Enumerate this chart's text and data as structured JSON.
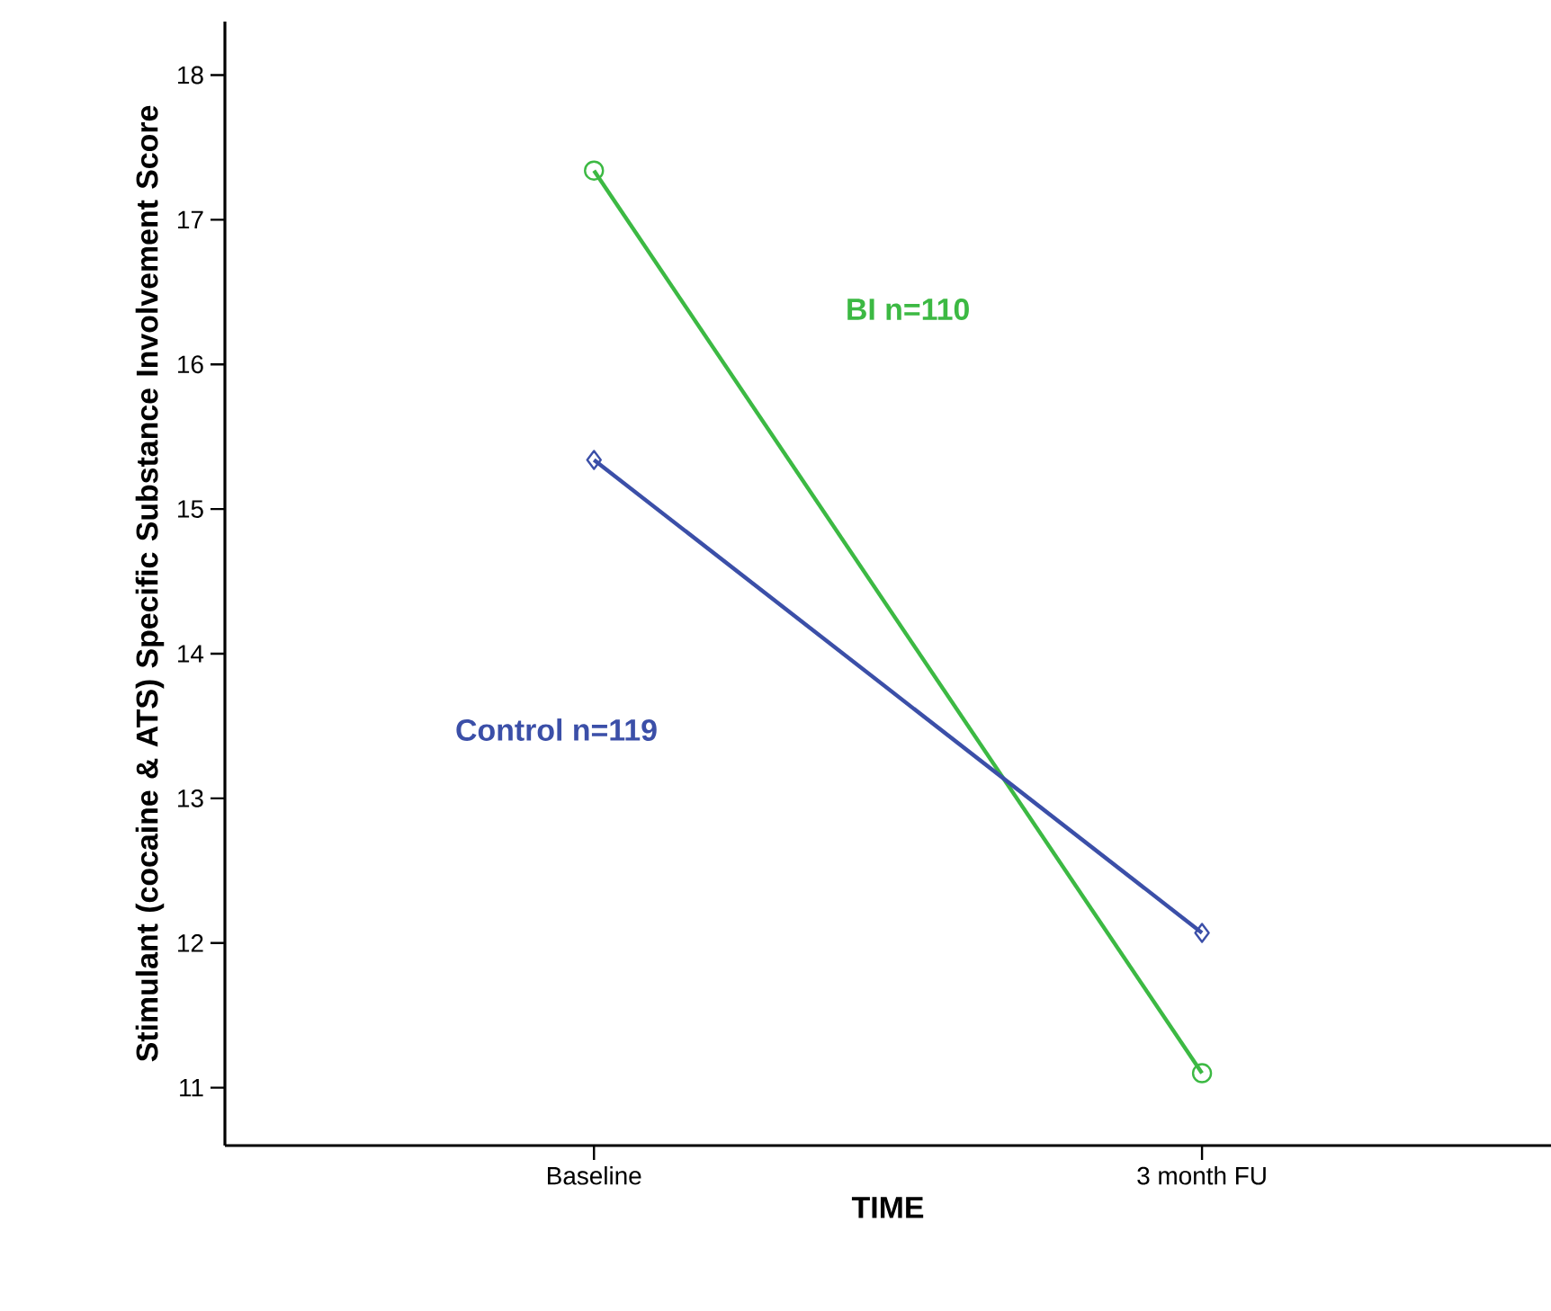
{
  "chart_data": {
    "type": "line",
    "xlabel": "TIME",
    "ylabel": "Stimulant (cocaine & ATS) Specific Substance Involvement Score",
    "categories": [
      "Baseline",
      "3 month FU"
    ],
    "series": [
      {
        "name": "BI n=110",
        "color": "#3cb943",
        "marker": "circle",
        "values": [
          17.34,
          11.1
        ]
      },
      {
        "name": "Control n=119",
        "color": "#3b4fa8",
        "marker": "diamond",
        "values": [
          15.34,
          12.07
        ]
      }
    ],
    "ylim": [
      10.6,
      18.37
    ],
    "yticks": [
      11,
      12,
      13,
      14,
      15,
      16,
      17,
      18
    ],
    "grid": false
  }
}
